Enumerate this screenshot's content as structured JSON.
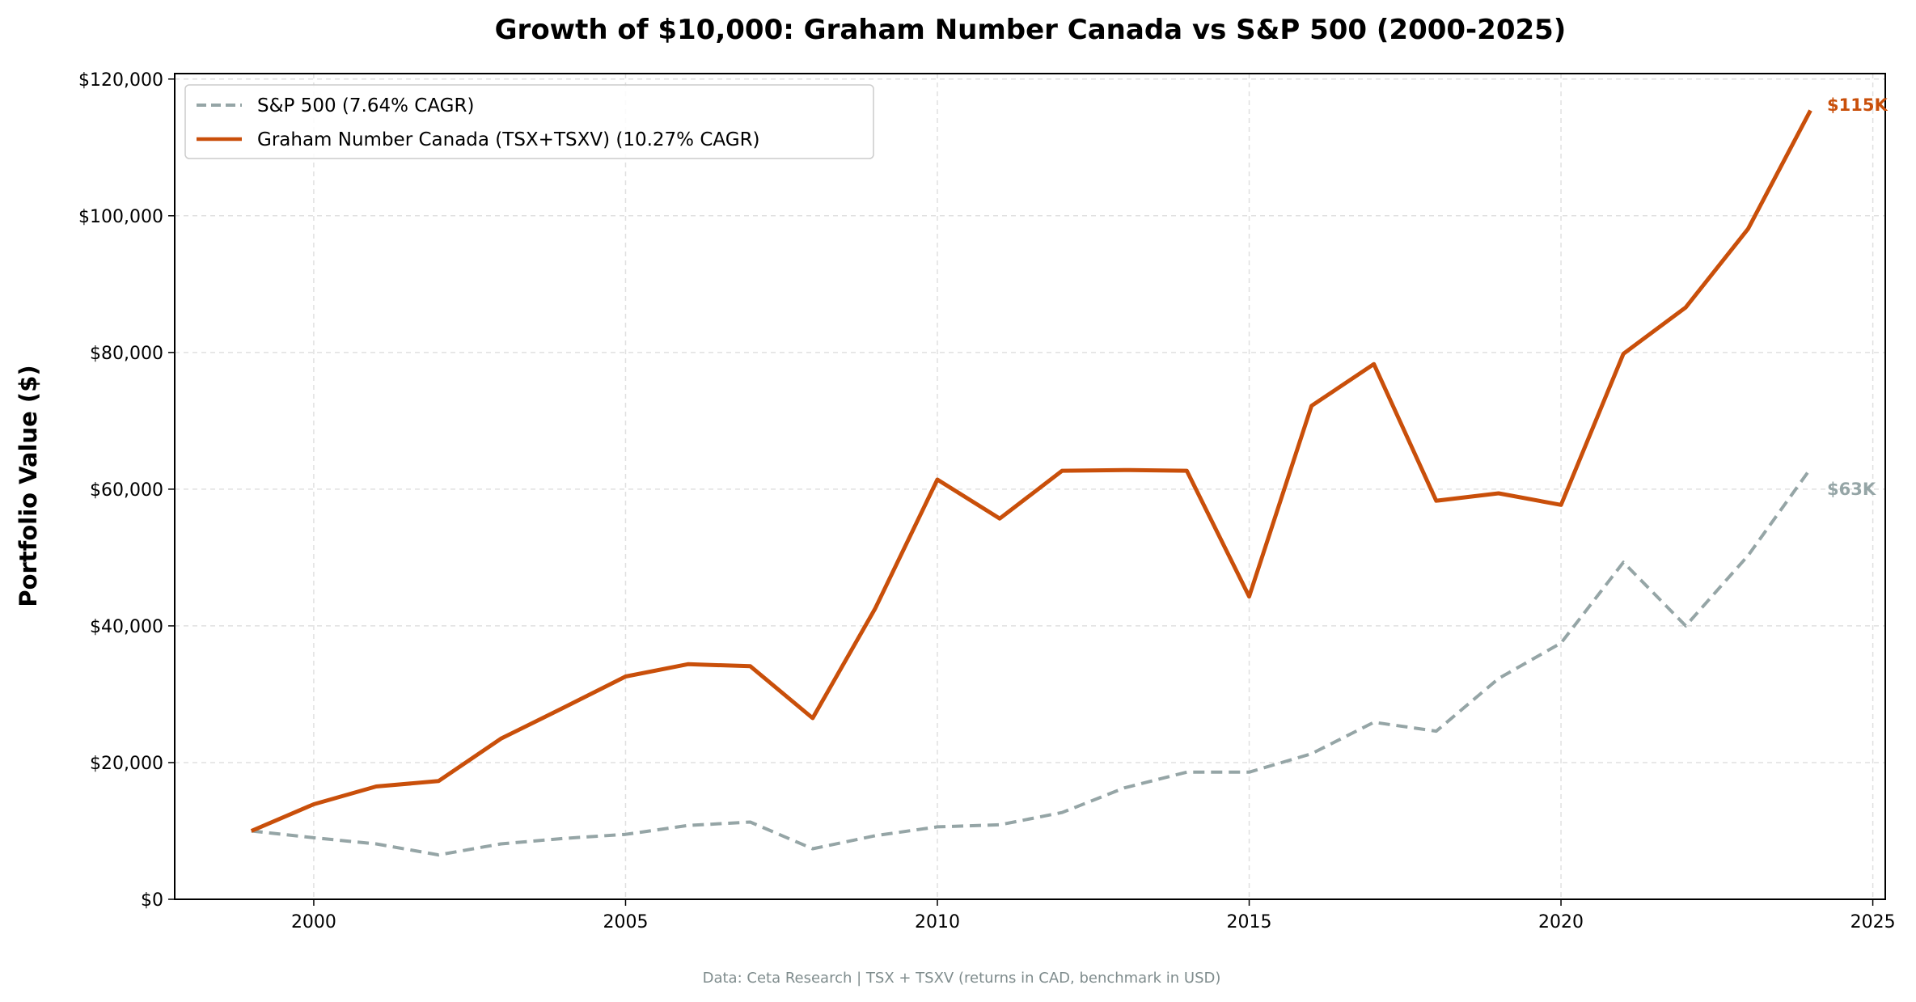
{
  "chart_data": {
    "type": "line",
    "title": "Growth of $10,000: Graham Number Canada vs S&P 500 (2000-2025)",
    "xlabel": "",
    "ylabel": "Portfolio Value ($)",
    "xlim": [
      1997.77,
      2025.2
    ],
    "ylim": [
      0,
      120800
    ],
    "xticks": [
      2000,
      2005,
      2010,
      2015,
      2020,
      2025
    ],
    "xtick_labels": [
      "2000",
      "2005",
      "2010",
      "2015",
      "2020",
      "2025"
    ],
    "yticks": [
      0,
      20000,
      40000,
      60000,
      80000,
      100000,
      120000
    ],
    "ytick_labels": [
      "$0",
      "$20,000",
      "$40,000",
      "$60,000",
      "$80,000",
      "$100,000",
      "$120,000"
    ],
    "grid": true,
    "legend_position": "top-left",
    "x": [
      1999,
      2000,
      2001,
      2002,
      2003,
      2004,
      2005,
      2006,
      2007,
      2008,
      2009,
      2010,
      2011,
      2012,
      2013,
      2014,
      2015,
      2016,
      2017,
      2018,
      2019,
      2020,
      2021,
      2022,
      2023,
      2024
    ],
    "series": [
      {
        "name": "S&P 500 (7.64% CAGR)",
        "color": "#95a5a6",
        "style": "dashed",
        "end_label": "$63K",
        "values": [
          10000,
          9000,
          8100,
          6500,
          8100,
          8900,
          9500,
          10800,
          11300,
          7400,
          9300,
          10600,
          10900,
          12700,
          16300,
          18600,
          18600,
          21300,
          25900,
          24600,
          32300,
          37500,
          49300,
          40000,
          50300,
          63000
        ]
      },
      {
        "name": "Graham Number Canada (TSX+TSXV) (10.27% CAGR)",
        "color": "#c94f0a",
        "style": "solid",
        "end_label": "$115K",
        "values": [
          10000,
          13900,
          16500,
          17300,
          23500,
          28000,
          32600,
          34400,
          34100,
          26500,
          42500,
          61400,
          55700,
          62700,
          62800,
          62700,
          44300,
          72200,
          78300,
          58300,
          59400,
          57700,
          79800,
          86600,
          98100,
          115400
        ]
      }
    ],
    "footer": "Data: Ceta Research | TSX + TSXV (returns in CAD, benchmark in USD)"
  }
}
